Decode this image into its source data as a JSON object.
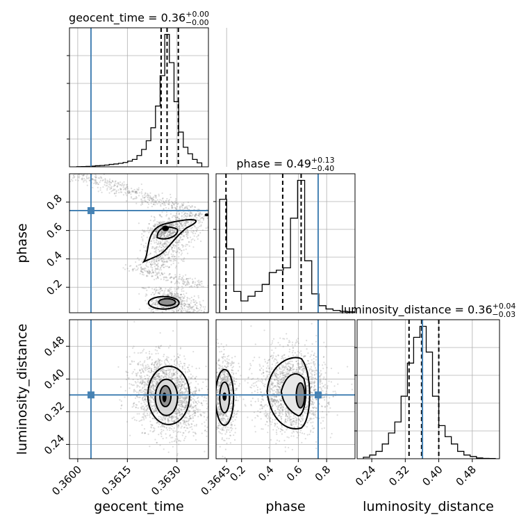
{
  "chart_data": {
    "type": "corner",
    "colors": {
      "truth": "#4682b4",
      "hist": "#000000",
      "samples": "#808080",
      "grid": "#b0b0b0"
    },
    "params": [
      {
        "key": "geocent_time",
        "label": "geocent_time",
        "title_main": "geocent_time = 0.36",
        "title_sup": "+0.00",
        "title_sub": "−0.00",
        "range": [
          0.35975,
          0.36395
        ],
        "ticks": [
          0.36,
          0.3615,
          0.363,
          0.3645
        ],
        "tick_labels": [
          "0.3600",
          "0.3615",
          "0.3630",
          "0.3645"
        ],
        "truth": 0.3604,
        "quantiles": [
          0.36252,
          0.3627,
          0.36304
        ],
        "hist_centers": [
          0.36004,
          0.36018,
          0.36032,
          0.36046,
          0.3606,
          0.36074,
          0.36088,
          0.36102,
          0.36116,
          0.3613,
          0.36144,
          0.36158,
          0.36172,
          0.36186,
          0.362,
          0.36214,
          0.36228,
          0.36242,
          0.36256,
          0.3627,
          0.36284,
          0.36298,
          0.36312,
          0.36326,
          0.3634,
          0.36354,
          0.36368
        ],
        "hist_values": [
          0.3,
          0.6,
          1.0,
          1.5,
          2.5,
          3.0,
          4.0,
          5.5,
          6.5,
          8.0,
          10,
          13,
          17,
          26,
          40,
          60,
          90,
          140,
          210,
          305,
          240,
          150,
          80,
          45,
          30,
          17,
          9
        ]
      },
      {
        "key": "phase",
        "label": "phase",
        "title_main": "phase = 0.49",
        "title_sup": "+0.13",
        "title_sub": "−0.40",
        "range": [
          0.02,
          1.0
        ],
        "ticks": [
          0.2,
          0.4,
          0.6,
          0.8
        ],
        "tick_labels": [
          "0.2",
          "0.4",
          "0.6",
          "0.8"
        ],
        "truth": 0.74,
        "quantiles": [
          0.09,
          0.49,
          0.62
        ],
        "hist_centers": [
          0.07,
          0.12,
          0.17,
          0.22,
          0.27,
          0.32,
          0.37,
          0.42,
          0.47,
          0.52,
          0.57,
          0.62,
          0.67,
          0.72,
          0.77,
          0.82,
          0.87,
          0.92,
          0.97
        ],
        "hist_values": [
          240,
          135,
          45,
          25,
          35,
          45,
          60,
          85,
          90,
          95,
          200,
          280,
          110,
          40,
          15,
          8,
          5,
          3,
          2
        ]
      },
      {
        "key": "luminosity_distance",
        "label": "luminosity_distance",
        "title_main": "luminosity_distance = 0.36",
        "title_sup": "+0.04",
        "title_sub": "−0.03",
        "range": [
          0.205,
          0.545
        ],
        "ticks": [
          0.24,
          0.32,
          0.4,
          0.48
        ],
        "tick_labels": [
          "0.24",
          "0.32",
          "0.40",
          "0.48"
        ],
        "truth": 0.361,
        "quantiles": [
          0.329,
          0.359,
          0.4
        ],
        "hist_centers": [
          0.2275,
          0.2425,
          0.2575,
          0.2725,
          0.2875,
          0.3025,
          0.3175,
          0.3325,
          0.3475,
          0.3625,
          0.3775,
          0.3925,
          0.4075,
          0.4225,
          0.4375,
          0.4525,
          0.4675,
          0.4825,
          0.4975,
          0.5125,
          0.5275
        ],
        "hist_values": [
          2,
          5,
          10,
          20,
          35,
          50,
          85,
          130,
          165,
          180,
          145,
          85,
          45,
          30,
          20,
          10,
          5,
          3,
          1,
          0.5,
          0.3
        ]
      }
    ]
  }
}
